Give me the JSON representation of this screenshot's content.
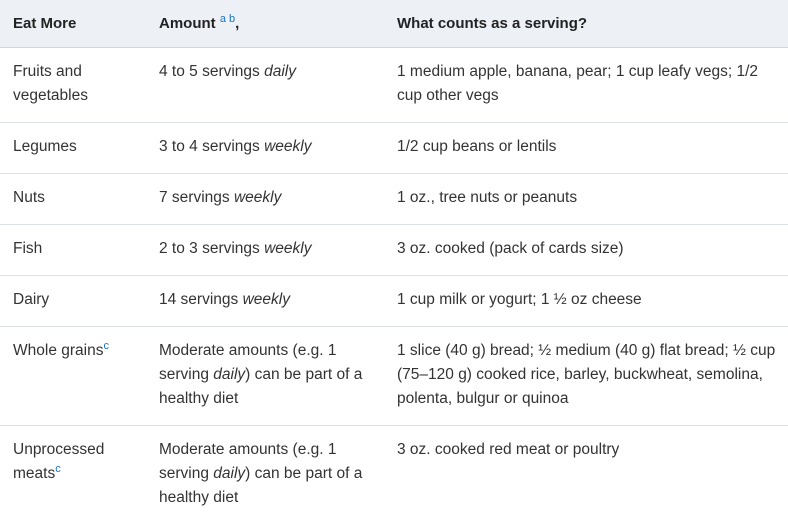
{
  "headers": {
    "col1": "Eat More",
    "col2": "Amount",
    "col2_sup": "a b",
    "col2_comma": ",",
    "col3": "What counts as a serving?"
  },
  "rows": [
    {
      "food": "Fruits and vegetables",
      "amount_pre": "4 to 5 servings ",
      "amount_em": "daily",
      "amount_post": "",
      "serving": "1 medium apple, banana, pear; 1 cup leafy vegs; 1/2 cup other vegs"
    },
    {
      "food": "Legumes",
      "amount_pre": "3 to 4 servings ",
      "amount_em": "weekly",
      "amount_post": "",
      "serving": "1/2 cup beans or lentils"
    },
    {
      "food": "Nuts",
      "amount_pre": "7 servings ",
      "amount_em": "weekly",
      "amount_post": "",
      "serving": "1 oz., tree nuts or peanuts"
    },
    {
      "food": "Fish",
      "amount_pre": "2 to 3 servings ",
      "amount_em": "weekly",
      "amount_post": "",
      "serving": "3 oz. cooked (pack of cards size)"
    },
    {
      "food": "Dairy",
      "amount_pre": "14 servings ",
      "amount_em": "weekly",
      "amount_post": "",
      "serving": "1 cup milk or yogurt; 1 ½ oz cheese"
    },
    {
      "food": "Whole grains",
      "food_sup": "c",
      "amount_pre": "Moderate amounts (e.g. 1 serving ",
      "amount_em": "daily",
      "amount_post": ") can be part of a healthy diet",
      "serving": "1 slice (40 g) bread; ½ medium (40 g) flat bread; ½ cup (75–120 g) cooked rice, barley, buckwheat, semolina, polenta, bulgur or quinoa"
    },
    {
      "food": "Unprocessed meats",
      "food_sup": "c",
      "amount_pre": "Moderate amounts (e.g. 1 serving ",
      "amount_em": "daily",
      "amount_post": ") can be part of a healthy diet",
      "serving": "3 oz. cooked red meat or poultry"
    }
  ]
}
